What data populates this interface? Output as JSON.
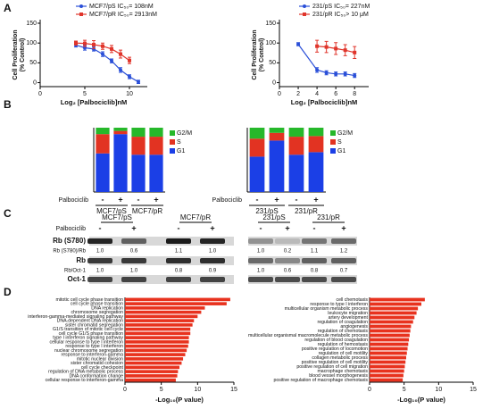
{
  "panel_labels": [
    "A",
    "B",
    "C",
    "D"
  ],
  "chart_data": [
    {
      "type": "line",
      "xlabel": "Log₂ [Palbociclib]nM",
      "ylabel": [
        "Cell Proliferation",
        "(% Control)"
      ],
      "xlim": [
        0,
        12
      ],
      "xticks": [
        0,
        5,
        10
      ],
      "ylim": [
        -10,
        150
      ],
      "yticks": [
        0,
        50,
        100,
        150
      ],
      "series": [
        {
          "name": "MCF7/pS IC₅₀= 108nM",
          "color": "#2a4fd8",
          "x": [
            4,
            5,
            6,
            7,
            8,
            9,
            10,
            11
          ],
          "values": [
            95,
            88,
            85,
            72,
            55,
            32,
            15,
            2
          ],
          "errors": [
            5,
            6,
            5,
            6,
            5,
            6,
            5,
            4
          ]
        },
        {
          "name": "MCF7/pR IC₅₀= 2913nM",
          "color": "#e0352b",
          "x": [
            4,
            5,
            6,
            7,
            8,
            9,
            10
          ],
          "values": [
            100,
            99,
            96,
            92,
            85,
            72,
            56
          ],
          "errors": [
            5,
            8,
            10,
            8,
            9,
            10,
            8
          ]
        }
      ]
    },
    {
      "type": "line",
      "xlabel": "Log₂ [Palbociclib]nM",
      "ylabel": [
        "Cell Proliferation",
        "(% Control)"
      ],
      "xlim": [
        0,
        9.5
      ],
      "xticks": [
        0,
        2,
        4,
        6,
        8
      ],
      "ylim": [
        -10,
        150
      ],
      "yticks": [
        0,
        50,
        100,
        150
      ],
      "series": [
        {
          "name": "231/pS IC₅₀= 227nM",
          "color": "#2a4fd8",
          "x": [
            2,
            4,
            5,
            6,
            7,
            8
          ],
          "values": [
            97,
            32,
            25,
            22,
            22,
            18
          ],
          "errors": [
            4,
            6,
            5,
            5,
            5,
            5
          ]
        },
        {
          "name": "231/pR IC₅₀> 10 μM",
          "color": "#e0352b",
          "x": [
            4,
            5,
            6,
            7,
            8
          ],
          "values": [
            92,
            90,
            86,
            82,
            76
          ],
          "errors": [
            15,
            14,
            15,
            14,
            15
          ]
        }
      ]
    },
    {
      "type": "stacked_bar",
      "ylim": [
        0,
        100
      ],
      "category_label": "Palbociclib",
      "categories": [
        "-",
        "+",
        "-",
        "+"
      ],
      "groups": [
        "MCF7/pS",
        "MCF7/pR"
      ],
      "series": [
        {
          "name": "G1",
          "color": "#1b3fe6",
          "values": [
            60,
            90,
            58,
            58
          ]
        },
        {
          "name": "S",
          "color": "#e23322",
          "values": [
            30,
            5,
            28,
            28
          ]
        },
        {
          "name": "G2/M",
          "color": "#26b82a",
          "values": [
            10,
            5,
            14,
            14
          ]
        }
      ]
    },
    {
      "type": "stacked_bar",
      "ylim": [
        0,
        100
      ],
      "category_label": "Palbociclib",
      "categories": [
        "-",
        "+",
        "-",
        "+"
      ],
      "groups": [
        "231/pS",
        "231/pR"
      ],
      "series": [
        {
          "name": "G1",
          "color": "#1b3fe6",
          "values": [
            55,
            80,
            58,
            62
          ]
        },
        {
          "name": "S",
          "color": "#e23322",
          "values": [
            28,
            12,
            28,
            25
          ]
        },
        {
          "name": "G2/M",
          "color": "#26b82a",
          "values": [
            17,
            8,
            14,
            13
          ]
        }
      ]
    },
    {
      "type": "hbar",
      "xlabel": "-Log₁₀(P value)",
      "xlim": [
        0,
        15
      ],
      "xticks": [
        0,
        5,
        10,
        15
      ],
      "color": "#e8321e",
      "categories": [
        "mitotic cell cycle phase transition",
        "cell cycle phase transition",
        "DNA replication",
        "chromosome segregation",
        "interferon-gamma-mediated signaling pathway",
        "DNA-dependent DNA replication",
        "sister chromatid segregation",
        "G1/S transition of mitotic cell cycle",
        "cell cycle G1/S phase transition",
        "type I interferon signaling pathway",
        "cellular response to type I interferon",
        "response to type I interferon",
        "nuclear chromosome segregation",
        "response to interferon-gamma",
        "mitotic nuclear division",
        "sister chromatid cohesion",
        "cell cycle checkpoint",
        "regulation of DNA metabolic process",
        "DNA conformation change",
        "cellular response to interferon-gamma"
      ],
      "values": [
        14.5,
        14,
        11,
        10.5,
        10,
        9.5,
        9.3,
        9,
        9,
        8.8,
        8.8,
        8.7,
        8.5,
        8.3,
        8,
        7.8,
        7.5,
        7.3,
        7.2,
        7
      ]
    },
    {
      "type": "hbar",
      "xlabel": "-Log₁₀(P value)",
      "xlim": [
        0,
        15
      ],
      "xticks": [
        0,
        5,
        10,
        15
      ],
      "color": "#e8321e",
      "categories": [
        "cell chemotaxis",
        "response to type I interferon",
        "multicellular organism metabolic process",
        "leukocyte migration",
        "artery development",
        "regulation of coagulation",
        "angiogenesis",
        "regulation of chemotaxis",
        "multicellular organismal macromolecule metabolic process",
        "regulation of blood coagulation",
        "regulation of hemostasis",
        "positive regulation of locomotion",
        "regulation of cell motility",
        "collagen metabolic process",
        "positive regulation of cell motility",
        "positive regulation of cell migration",
        "macrophage chemotaxis",
        "blood vessel morphogenesis",
        "positive regulation of macrophage chemotaxis"
      ],
      "values": [
        8,
        7.5,
        7,
        6.8,
        6.5,
        6.3,
        6,
        5.9,
        5.8,
        5.7,
        5.6,
        5.5,
        5.4,
        5.3,
        5.2,
        5.1,
        5,
        4.9,
        4.8
      ]
    }
  ],
  "blot": {
    "groups": [
      "MCF7/pS",
      "MCF7/pR",
      "231/pS",
      "231/pR"
    ],
    "treatment": "Palbociclib",
    "lanes": [
      "-",
      "+",
      "-",
      "+",
      "-",
      "+",
      "-",
      "+"
    ],
    "rows": [
      {
        "label": "Rb (S780)"
      },
      {
        "label": "Rb (S780)/Rb",
        "values": [
          "1.0",
          "0.6",
          "1.1",
          "1.0",
          "1.0",
          "0.2",
          "1.1",
          "1.2"
        ]
      },
      {
        "label": "Rb"
      },
      {
        "label": "Rb/Oct-1",
        "values": [
          "1.0",
          "1.0",
          "0.8",
          "0.9",
          "1.0",
          "0.6",
          "0.8",
          "0.7"
        ]
      },
      {
        "label": "Oct-1"
      }
    ]
  }
}
